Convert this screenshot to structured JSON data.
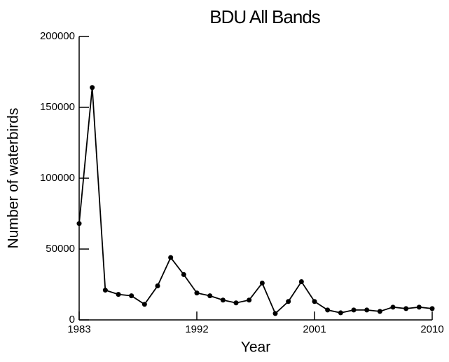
{
  "chart_data": {
    "type": "line",
    "title": "BDU All Bands",
    "x_label": "Year",
    "y_label": "Number of waterbirds",
    "x": [
      1983,
      1984,
      1985,
      1986,
      1987,
      1988,
      1989,
      1990,
      1991,
      1992,
      1993,
      1994,
      1995,
      1996,
      1997,
      1998,
      1999,
      2000,
      2001,
      2002,
      2003,
      2004,
      2005,
      2006,
      2007,
      2008,
      2009,
      2010
    ],
    "series": [
      {
        "name": "BDU",
        "color": "#000000",
        "values": [
          68000,
          164000,
          21000,
          18000,
          17000,
          11000,
          24000,
          44000,
          32000,
          19000,
          17000,
          14000,
          12000,
          14000,
          26000,
          4500,
          13000,
          27000,
          13000,
          7000,
          5000,
          7000,
          7000,
          6000,
          9000,
          8000,
          9000,
          8000
        ]
      }
    ],
    "xlim": [
      1983,
      2010
    ],
    "xticks": [
      1983,
      1992,
      2001,
      2010
    ],
    "ylim": [
      0,
      200000
    ],
    "yticks": [
      0,
      50000,
      100000,
      150000,
      200000
    ],
    "grid": false
  }
}
